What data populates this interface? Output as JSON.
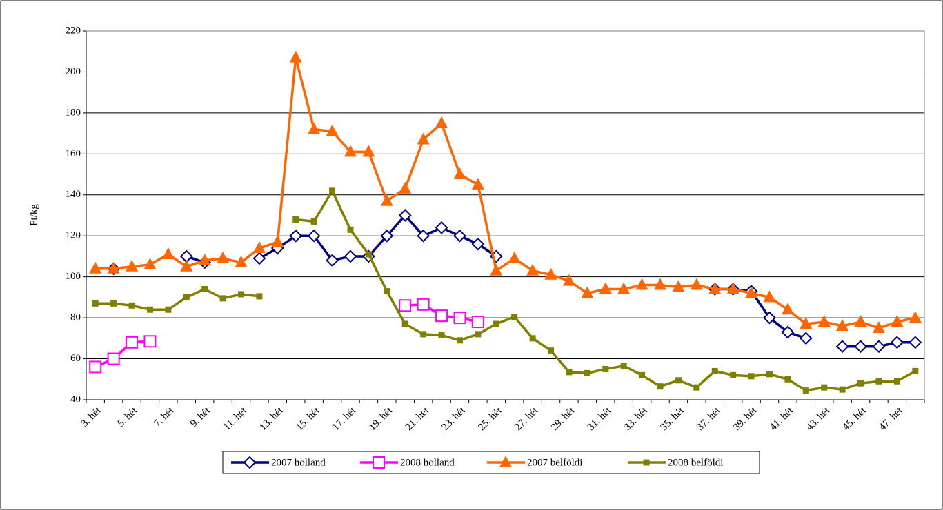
{
  "chart_data": {
    "type": "line",
    "y_label": "Ft/kg",
    "categories": [
      "3. hét",
      null,
      "5. hét",
      null,
      "7. hét",
      null,
      "9. hét",
      null,
      "11. hét",
      null,
      "13. hét",
      null,
      "15. hét",
      null,
      "17. hét",
      null,
      "19. hét",
      null,
      "21. hét",
      null,
      "23. hét",
      null,
      "25. hét",
      null,
      "27. hét",
      null,
      "29. hét",
      null,
      "31. hét",
      null,
      "33. hét",
      null,
      "35. hét",
      null,
      "37. hét",
      null,
      "39. hét",
      null,
      "41. hét",
      null,
      "43. hét",
      null,
      "45. hét",
      null,
      "47. hét",
      null
    ],
    "series": [
      {
        "name": "2007 holland",
        "color": "#000080",
        "marker": "diamond",
        "values": [
          null,
          104,
          null,
          null,
          null,
          110,
          107,
          null,
          null,
          109,
          114,
          120,
          120,
          108,
          110,
          110,
          120,
          130,
          120,
          124,
          120,
          116,
          110,
          null,
          null,
          null,
          null,
          null,
          null,
          null,
          null,
          null,
          null,
          null,
          94,
          94,
          93,
          80,
          73,
          70,
          null,
          66,
          66,
          66,
          68,
          68
        ]
      },
      {
        "name": "2008 holland",
        "color": "#ff00ff",
        "marker": "square-open",
        "values": [
          56,
          60,
          68,
          68.5,
          null,
          null,
          null,
          null,
          null,
          null,
          null,
          null,
          null,
          null,
          null,
          null,
          null,
          86,
          86.5,
          81,
          80,
          78,
          null,
          null,
          null,
          null,
          null,
          null,
          null,
          null,
          null,
          null,
          null,
          null,
          null,
          null,
          null,
          null,
          null,
          null,
          null,
          null,
          null,
          null,
          null,
          null
        ]
      },
      {
        "name": "2007 belföldi",
        "color": "#ff6600",
        "marker": "triangle",
        "values": [
          104,
          104,
          105,
          106,
          111,
          105,
          108,
          109,
          107,
          114,
          117,
          207,
          172,
          171,
          161,
          161,
          137,
          143,
          167,
          175,
          150,
          145,
          103,
          109,
          103,
          101,
          98,
          92,
          94,
          94,
          96,
          96,
          95,
          96,
          94,
          94,
          92,
          90,
          84,
          77,
          78,
          76,
          78,
          75,
          78,
          80
        ]
      },
      {
        "name": "2008 belföldi",
        "color": "#808000",
        "marker": "square",
        "values": [
          87,
          87,
          86,
          84,
          84,
          90,
          94,
          89.5,
          91.5,
          90.5,
          null,
          128,
          127,
          142,
          123,
          111,
          93,
          77,
          72,
          71.5,
          69,
          72,
          77,
          80.5,
          70,
          64,
          53.5,
          53,
          55,
          56.5,
          52,
          46.5,
          49.5,
          46,
          54,
          52,
          51.5,
          52.5,
          50,
          44.5,
          46,
          45,
          48,
          49,
          49,
          54
        ]
      }
    ],
    "ylim": [
      40,
      220
    ],
    "yticks": [
      40,
      60,
      80,
      100,
      120,
      140,
      160,
      180,
      200,
      220
    ],
    "grid": true,
    "legend": "bottom"
  }
}
